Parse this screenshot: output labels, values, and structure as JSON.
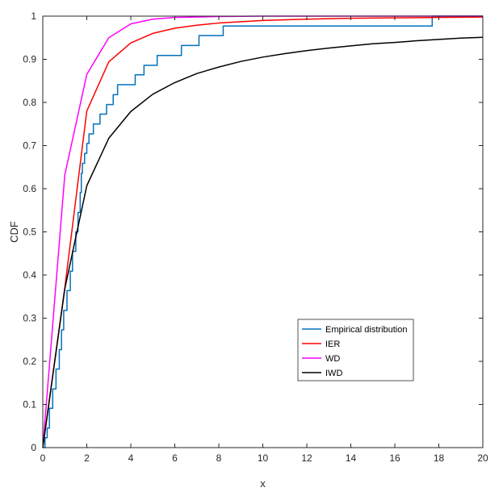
{
  "chart_data": {
    "type": "line",
    "xlabel": "x",
    "ylabel": "CDF",
    "xlim": [
      0,
      20
    ],
    "ylim": [
      0,
      1
    ],
    "xticks": [
      0,
      2,
      4,
      6,
      8,
      10,
      12,
      14,
      16,
      18,
      20
    ],
    "yticks": [
      0,
      0.1,
      0.2,
      0.3,
      0.4,
      0.5,
      0.6,
      0.7,
      0.8,
      0.9,
      1
    ],
    "grid": false,
    "legend_position": "lower-right",
    "series": [
      {
        "name": "Empirical distribution",
        "color": "#0072BD",
        "style": "step",
        "x": [
          0,
          0.1,
          0.2,
          0.3,
          0.45,
          0.6,
          0.75,
          0.85,
          0.95,
          1.1,
          1.25,
          1.35,
          1.5,
          1.6,
          1.7,
          1.75,
          1.8,
          1.9,
          2.0,
          2.1,
          2.3,
          2.6,
          2.9,
          3.2,
          3.4,
          4.2,
          4.6,
          5.2,
          6.3,
          7.1,
          8.2,
          17.7,
          20
        ],
        "y": [
          0,
          0.023,
          0.045,
          0.091,
          0.136,
          0.182,
          0.227,
          0.273,
          0.318,
          0.364,
          0.409,
          0.455,
          0.5,
          0.545,
          0.591,
          0.636,
          0.659,
          0.682,
          0.705,
          0.727,
          0.75,
          0.773,
          0.795,
          0.818,
          0.841,
          0.864,
          0.886,
          0.909,
          0.932,
          0.955,
          0.977,
          1.0,
          1.0
        ]
      },
      {
        "name": "IER",
        "color": "#FF0000",
        "style": "line",
        "x": [
          0,
          1,
          2,
          3,
          4,
          5,
          6,
          7,
          8,
          10,
          12,
          14,
          16,
          18,
          20
        ],
        "y": [
          0,
          0.37,
          0.78,
          0.894,
          0.938,
          0.96,
          0.972,
          0.979,
          0.984,
          0.99,
          0.993,
          0.995,
          0.996,
          0.997,
          0.998
        ]
      },
      {
        "name": "WD",
        "color": "#FF00FF",
        "style": "line",
        "x": [
          0,
          1,
          2,
          3,
          4,
          5,
          6,
          8,
          10,
          12,
          14,
          16,
          18,
          20
        ],
        "y": [
          0,
          0.632,
          0.865,
          0.95,
          0.982,
          0.993,
          0.997,
          0.999,
          1.0,
          1.0,
          1.0,
          1.0,
          1.0,
          1.0
        ]
      },
      {
        "name": "IWD",
        "color": "#000000",
        "style": "line",
        "x": [
          0,
          1,
          2,
          3,
          4,
          5,
          6,
          7,
          8,
          9,
          10,
          11,
          12,
          13,
          14,
          15,
          16,
          17,
          18,
          19,
          20
        ],
        "y": [
          0,
          0.368,
          0.607,
          0.717,
          0.779,
          0.819,
          0.846,
          0.867,
          0.882,
          0.895,
          0.905,
          0.913,
          0.92,
          0.926,
          0.931,
          0.936,
          0.939,
          0.943,
          0.946,
          0.949,
          0.951
        ]
      }
    ]
  }
}
